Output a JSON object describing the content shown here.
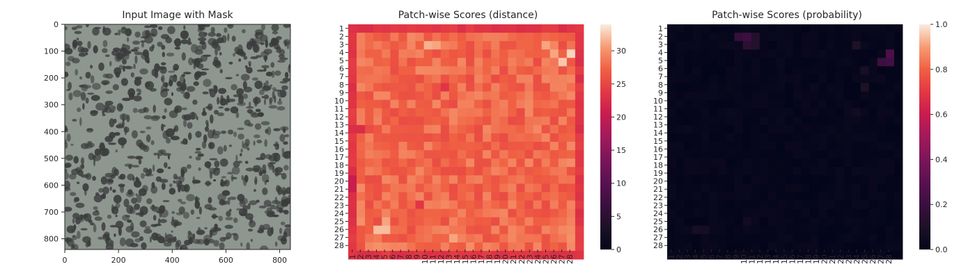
{
  "chart_data": [
    {
      "type": "image",
      "title": "Input Image with Mask",
      "xlim": [
        0,
        840
      ],
      "ylim": [
        840,
        0
      ],
      "xticks": [
        "0",
        "200",
        "400",
        "600",
        "800"
      ],
      "yticks": [
        "0",
        "100",
        "200",
        "300",
        "400",
        "500",
        "600",
        "700",
        "800"
      ],
      "image_colors": {
        "background": "#8e9690",
        "blob": "#3a3c3c"
      }
    },
    {
      "type": "heatmap",
      "title": "Patch-wise Scores (distance)",
      "grid_size": 28,
      "xticks": [
        "1",
        "2",
        "3",
        "4",
        "5",
        "6",
        "7",
        "8",
        "9",
        "10",
        "11",
        "12",
        "13",
        "14",
        "15",
        "16",
        "17",
        "18",
        "19",
        "20",
        "21",
        "22",
        "23",
        "24",
        "25",
        "26",
        "27",
        "28"
      ],
      "yticks": [
        "1",
        "2",
        "3",
        "4",
        "5",
        "6",
        "7",
        "8",
        "9",
        "10",
        "11",
        "12",
        "13",
        "14",
        "15",
        "16",
        "17",
        "18",
        "19",
        "20",
        "21",
        "22",
        "23",
        "24",
        "25",
        "26",
        "27",
        "28"
      ],
      "vmin": 0,
      "vmax": 34,
      "colorbar_ticks": [
        "0",
        "5",
        "10",
        "15",
        "20",
        "25",
        "30"
      ],
      "colormap": "rocket",
      "values_description": "approximately 22-24 on border patches, 25-33 in interior, peaks ~33 near (row 4, col 27) and (row 25, col 4)"
    },
    {
      "type": "heatmap",
      "title": "Patch-wise Scores (probability)",
      "grid_size": 28,
      "xticks": [
        "1",
        "2",
        "3",
        "4",
        "5",
        "6",
        "7",
        "8",
        "9",
        "10",
        "11",
        "12",
        "13",
        "14",
        "15",
        "16",
        "17",
        "18",
        "19",
        "20",
        "21",
        "22",
        "23",
        "24",
        "25",
        "26",
        "27",
        "28"
      ],
      "yticks": [
        "1",
        "2",
        "3",
        "4",
        "5",
        "6",
        "7",
        "8",
        "9",
        "10",
        "11",
        "12",
        "13",
        "14",
        "15",
        "16",
        "17",
        "18",
        "19",
        "20",
        "21",
        "22",
        "23",
        "24",
        "25",
        "26",
        "27",
        "28"
      ],
      "vmin": 0,
      "vmax": 1,
      "colorbar_ticks": [
        "0.0",
        "0.2",
        "0.4",
        "0.6",
        "0.8",
        "1.0"
      ],
      "colormap": "rocket",
      "values_description": "near 0 everywhere; small elevations ~0.15-0.25 around (rows 2-4, cols 9-11) and (rows 4-5, cols 26-27)"
    }
  ]
}
